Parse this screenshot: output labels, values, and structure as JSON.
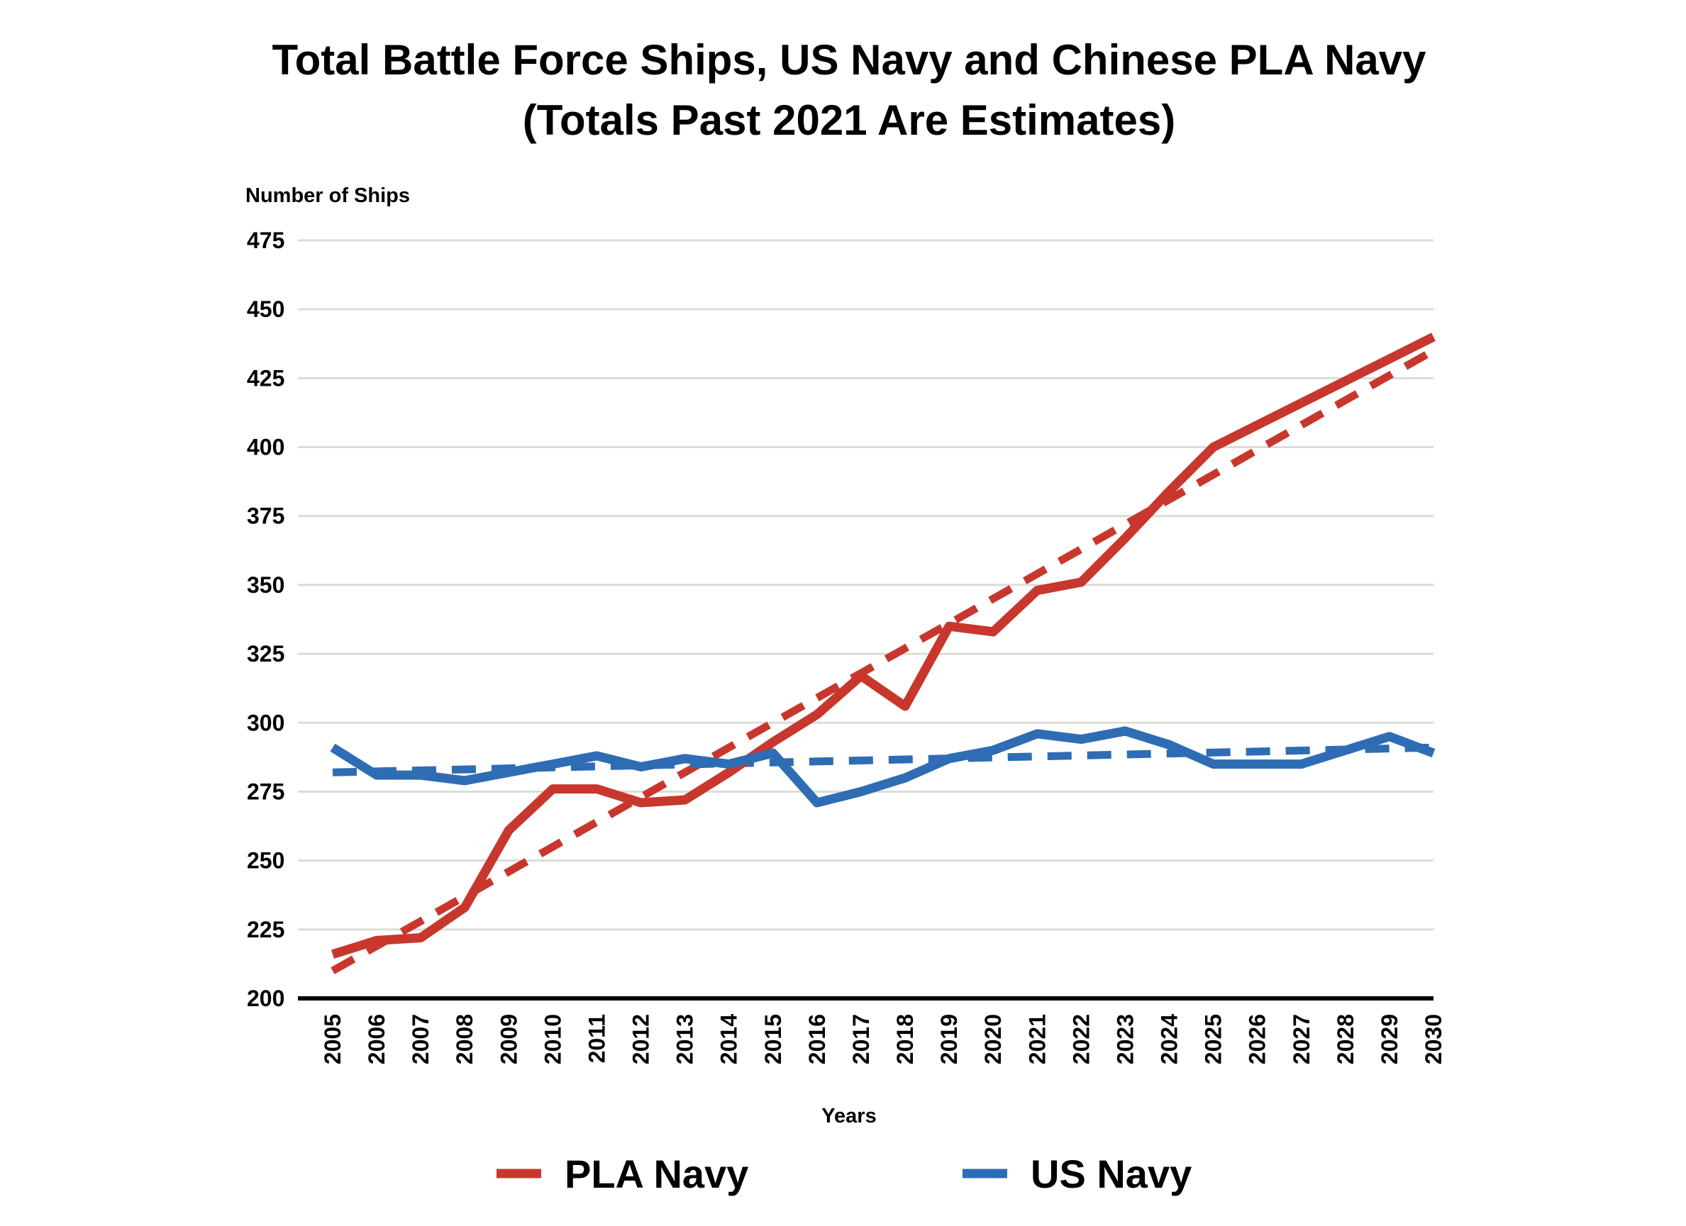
{
  "chart_data": {
    "type": "line",
    "title": "Total Battle Force Ships, US Navy and Chinese PLA Navy",
    "subtitle": "(Totals Past 2021 Are Estimates)",
    "y_label": "Number of Ships",
    "x_label": "Years",
    "x": [
      2005,
      2006,
      2007,
      2008,
      2009,
      2010,
      2011,
      2012,
      2013,
      2014,
      2015,
      2016,
      2017,
      2018,
      2019,
      2020,
      2021,
      2022,
      2023,
      2024,
      2025,
      2026,
      2027,
      2028,
      2029,
      2030
    ],
    "series": [
      {
        "name": "PLA Navy",
        "color": "#c8372d",
        "values": [
          216,
          221,
          222,
          233,
          261,
          276,
          276,
          271,
          272,
          282,
          293,
          303,
          317,
          306,
          335,
          333,
          348,
          351,
          367,
          384,
          400,
          408,
          416,
          424,
          432,
          440
        ]
      },
      {
        "name": "US Navy",
        "color": "#2e6db4",
        "values": [
          291,
          281,
          281,
          279,
          282,
          285,
          288,
          284,
          287,
          285,
          289,
          271,
          275,
          280,
          287,
          290,
          296,
          294,
          297,
          292,
          285,
          285,
          285,
          290,
          295,
          289
        ]
      }
    ],
    "trends": [
      {
        "color": "#c8372d",
        "x": [
          2005,
          2030
        ],
        "values": [
          210,
          435
        ]
      },
      {
        "color": "#2e6db4",
        "x": [
          2005,
          2030
        ],
        "values": [
          282,
          291
        ]
      }
    ],
    "xlim": [
      2005,
      2030
    ],
    "xticks": [
      2005,
      2006,
      2007,
      2008,
      2009,
      2010,
      2011,
      2012,
      2013,
      2014,
      2015,
      2016,
      2017,
      2018,
      2019,
      2020,
      2021,
      2022,
      2023,
      2024,
      2025,
      2026,
      2027,
      2028,
      2029,
      2030
    ],
    "ylim": [
      200,
      475
    ],
    "yticks": [
      200,
      225,
      250,
      275,
      300,
      325,
      350,
      375,
      400,
      425,
      450,
      475
    ],
    "grid": true,
    "legend": "bottom"
  }
}
